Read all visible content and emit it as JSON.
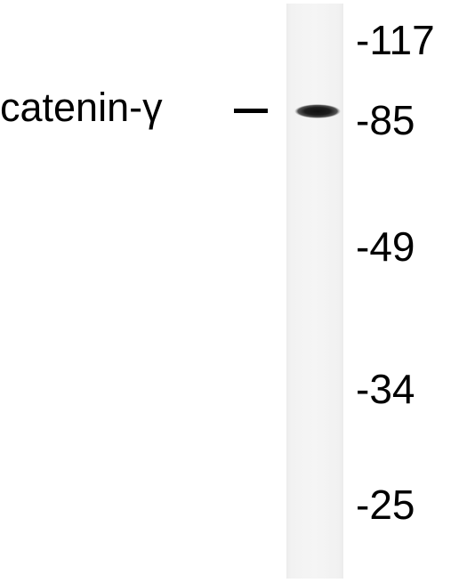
{
  "blot": {
    "protein_label": "catenin-γ",
    "markers": [
      {
        "label": "-117",
        "kda": 117
      },
      {
        "label": "-85",
        "kda": 85
      },
      {
        "label": "-49",
        "kda": 49
      },
      {
        "label": "-34",
        "kda": 34
      },
      {
        "label": "-25",
        "kda": 25
      }
    ],
    "band_marker_kda": 85
  }
}
